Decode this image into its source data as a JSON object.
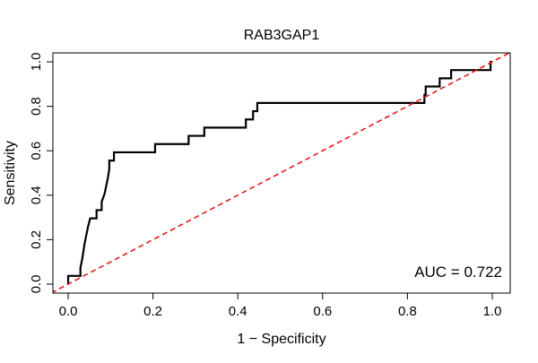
{
  "chart_data": {
    "type": "line",
    "title": "RAB3GAP1",
    "xlabel": "1 − Specificity",
    "ylabel": "Sensitivity",
    "xlim": [
      0,
      1
    ],
    "ylim": [
      0,
      1
    ],
    "x_ticks": [
      "0.0",
      "0.2",
      "0.4",
      "0.6",
      "0.8",
      "1.0"
    ],
    "y_ticks": [
      "0.0",
      "0.2",
      "0.4",
      "0.6",
      "0.8",
      "1.0"
    ],
    "grid": false,
    "legend": "none",
    "annotation": "AUC = 0.722",
    "auc": 0.722,
    "series": [
      {
        "name": "ROC curve",
        "color": "#000000",
        "style": "step-solid",
        "x": [
          0.0,
          0.0,
          0.029,
          0.029,
          0.033,
          0.036,
          0.039,
          0.043,
          0.047,
          0.052,
          0.052,
          0.067,
          0.067,
          0.079,
          0.079,
          0.086,
          0.09,
          0.094,
          0.097,
          0.097,
          0.108,
          0.108,
          0.205,
          0.205,
          0.284,
          0.284,
          0.321,
          0.321,
          0.419,
          0.419,
          0.436,
          0.436,
          0.446,
          0.446,
          0.84,
          0.84,
          0.843,
          0.843,
          0.876,
          0.876,
          0.903,
          0.903,
          0.996,
          0.996,
          1.0
        ],
        "y": [
          0.0,
          0.037,
          0.037,
          0.074,
          0.111,
          0.148,
          0.185,
          0.222,
          0.259,
          0.296,
          0.296,
          0.296,
          0.333,
          0.333,
          0.37,
          0.407,
          0.444,
          0.481,
          0.519,
          0.556,
          0.556,
          0.593,
          0.593,
          0.63,
          0.63,
          0.667,
          0.667,
          0.704,
          0.704,
          0.741,
          0.741,
          0.778,
          0.778,
          0.815,
          0.815,
          0.852,
          0.852,
          0.889,
          0.889,
          0.926,
          0.926,
          0.963,
          0.963,
          1.0,
          1.0
        ]
      },
      {
        "name": "chance line",
        "color": "#e8191c",
        "style": "dashed",
        "x": [
          -0.04,
          1.04
        ],
        "y": [
          -0.04,
          1.04
        ]
      }
    ]
  }
}
